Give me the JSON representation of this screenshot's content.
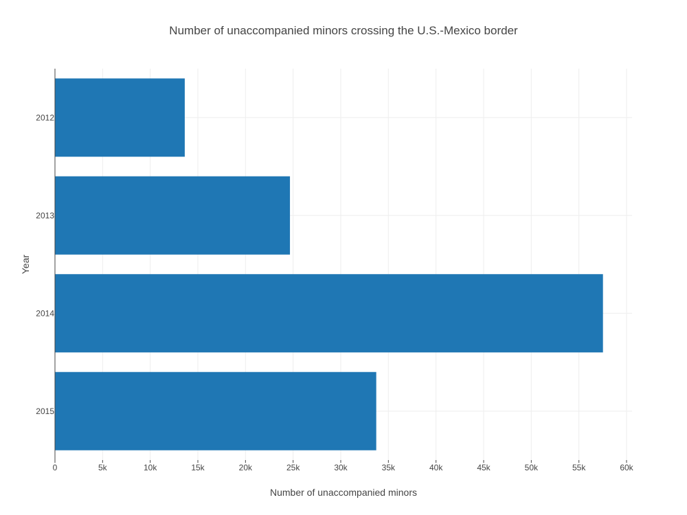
{
  "chart_data": {
    "type": "bar",
    "orientation": "horizontal",
    "title": "Number of unaccompanied minors crossing the U.S.-Mexico border",
    "xlabel": "Number of unaccompanied minors",
    "ylabel": "Year",
    "categories": [
      "2012",
      "2013",
      "2014",
      "2015"
    ],
    "values": [
      13625,
      24668,
      57525,
      33726
    ],
    "xlim": [
      0,
      60000
    ],
    "xticks": [
      0,
      5000,
      10000,
      15000,
      20000,
      25000,
      30000,
      35000,
      40000,
      45000,
      50000,
      55000,
      60000
    ],
    "xtick_labels": [
      "0",
      "5k",
      "10k",
      "15k",
      "20k",
      "25k",
      "30k",
      "35k",
      "40k",
      "45k",
      "50k",
      "55k",
      "60k"
    ],
    "bar_color": "#1f77b4",
    "grid": true,
    "legend": false
  }
}
